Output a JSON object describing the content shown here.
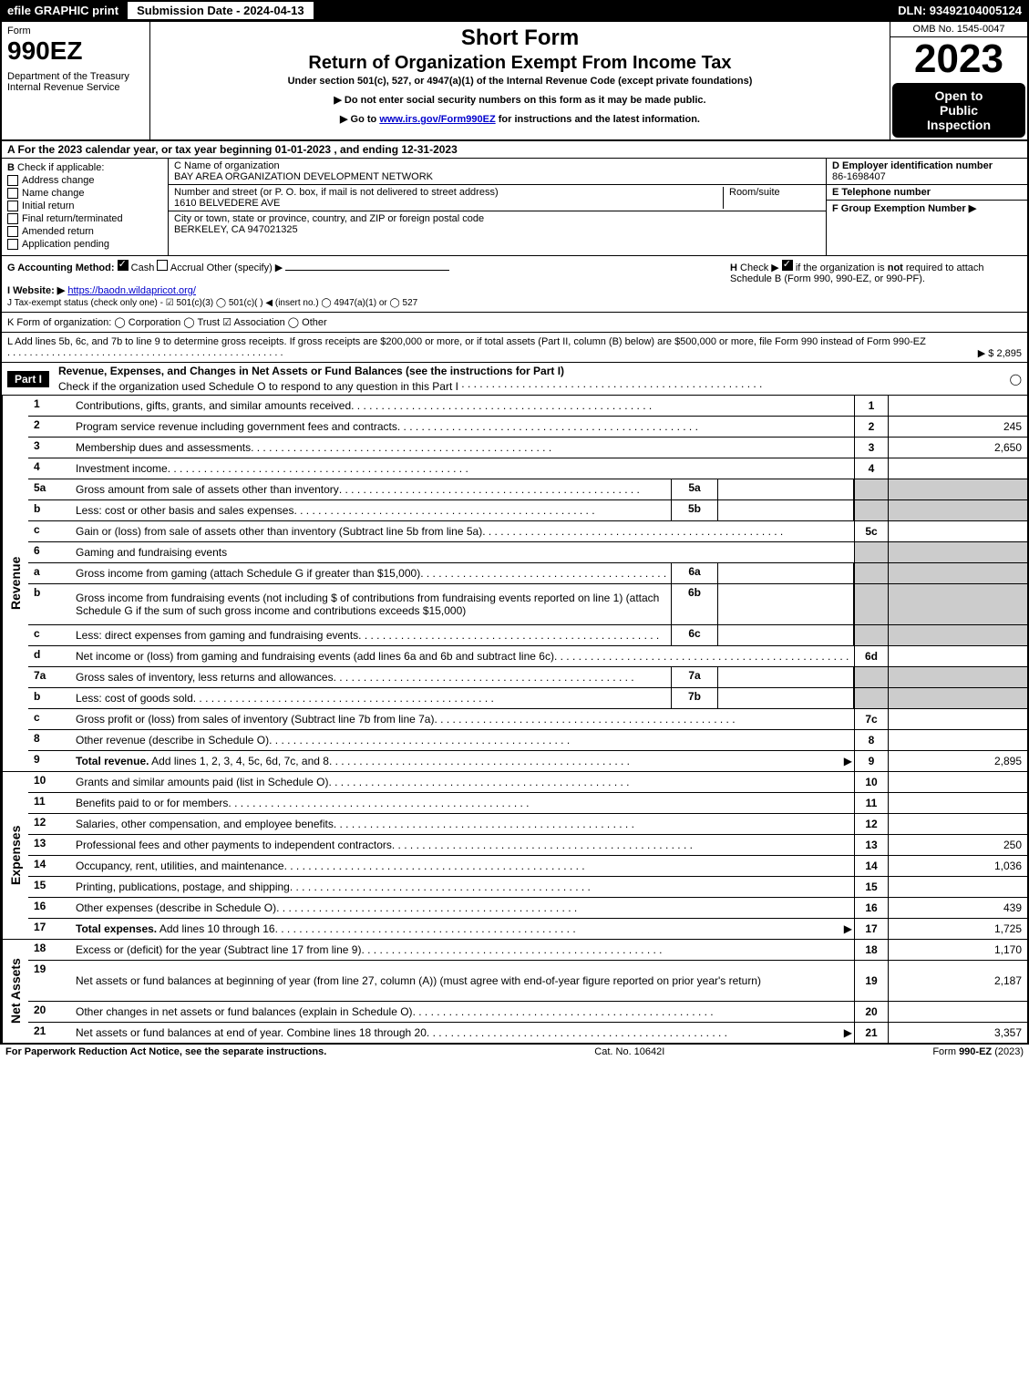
{
  "top_bar": {
    "efile": "efile GRAPHIC print",
    "submission": "Submission Date - 2024-04-13",
    "dln": "DLN: 93492104005124"
  },
  "header": {
    "form_label": "Form",
    "form_number": "990EZ",
    "dept": "Department of the Treasury\nInternal Revenue Service",
    "title1": "Short Form",
    "title2": "Return of Organization Exempt From Income Tax",
    "subtitle": "Under section 501(c), 527, or 4947(a)(1) of the Internal Revenue Code (except private foundations)",
    "instruction1": "▶ Do not enter social security numbers on this form as it may be made public.",
    "instruction2": "▶ Go to www.irs.gov/Form990EZ for instructions and the latest information.",
    "omb": "OMB No. 1545-0047",
    "year": "2023",
    "open_line1": "Open to",
    "open_line2": "Public",
    "open_line3": "Inspection"
  },
  "section_a": "A  For the 2023 calendar year, or tax year beginning 01-01-2023 , and ending 12-31-2023",
  "section_b": {
    "label": "B",
    "title": "Check if applicable:",
    "items": [
      "Address change",
      "Name change",
      "Initial return",
      "Final return/terminated",
      "Amended return",
      "Application pending"
    ]
  },
  "section_c": {
    "name_label": "C Name of organization",
    "name": "BAY AREA ORGANIZATION DEVELOPMENT NETWORK",
    "addr_label": "Number and street (or P. O. box, if mail is not delivered to street address)",
    "room_label": "Room/suite",
    "addr": "1610 BELVEDERE AVE",
    "city_label": "City or town, state or province, country, and ZIP or foreign postal code",
    "city": "BERKELEY, CA  947021325"
  },
  "section_d": {
    "ein_label": "D Employer identification number",
    "ein": "86-1698407",
    "phone_label": "E Telephone number",
    "group_label": "F Group Exemption Number  ▶"
  },
  "meta": {
    "g": "G Accounting Method:",
    "g_cash": "Cash",
    "g_accrual": "Accrual",
    "g_other": "Other (specify) ▶",
    "h": "H  Check ▶ ☑ if the organization is not required to attach Schedule B (Form 990, 990-EZ, or 990-PF).",
    "i_label": "I Website: ▶",
    "i_url": "https://baodn.wildapricot.org/",
    "j": "J Tax-exempt status (check only one) - ☑ 501(c)(3) ◯ 501(c)(  ) ◀ (insert no.) ◯ 4947(a)(1) or ◯ 527",
    "k": "K Form of organization:  ◯ Corporation  ◯ Trust  ☑ Association  ◯ Other",
    "l": "L Add lines 5b, 6c, and 7b to line 9 to determine gross receipts. If gross receipts are $200,000 or more, or if total assets (Part II, column (B) below) are $500,000 or more, file Form 990 instead of Form 990-EZ",
    "l_val": "▶ $ 2,895"
  },
  "part1": {
    "header": "Part I",
    "title": "Revenue, Expenses, and Changes in Net Assets or Fund Balances (see the instructions for Part I)",
    "check": "Check if the organization used Schedule O to respond to any question in this Part I",
    "check_val": "◯"
  },
  "revenue": {
    "label": "Revenue",
    "lines": [
      {
        "n": "1",
        "desc": "Contributions, gifts, grants, and similar amounts received",
        "box": "1",
        "val": ""
      },
      {
        "n": "2",
        "desc": "Program service revenue including government fees and contracts",
        "box": "2",
        "val": "245"
      },
      {
        "n": "3",
        "desc": "Membership dues and assessments",
        "box": "3",
        "val": "2,650"
      },
      {
        "n": "4",
        "desc": "Investment income",
        "box": "4",
        "val": ""
      },
      {
        "n": "5a",
        "desc": "Gross amount from sale of assets other than inventory",
        "sub": "5a",
        "subval": "",
        "shaded": true
      },
      {
        "n": "b",
        "desc": "Less: cost or other basis and sales expenses",
        "sub": "5b",
        "subval": "",
        "shaded": true
      },
      {
        "n": "c",
        "desc": "Gain or (loss) from sale of assets other than inventory (Subtract line 5b from line 5a)",
        "box": "5c",
        "val": ""
      },
      {
        "n": "6",
        "desc": "Gaming and fundraising events",
        "plain": true,
        "shaded": true
      },
      {
        "n": "a",
        "desc": "Gross income from gaming (attach Schedule G if greater than $15,000)",
        "sub": "6a",
        "subval": "",
        "shaded": true
      },
      {
        "n": "b",
        "desc": "Gross income from fundraising events (not including $                            of contributions from fundraising events reported on line 1) (attach Schedule G if the sum of such gross income and contributions exceeds $15,000)",
        "sub": "6b",
        "subval": "",
        "shaded": true,
        "tall": true
      },
      {
        "n": "c",
        "desc": "Less: direct expenses from gaming and fundraising events",
        "sub": "6c",
        "subval": "",
        "shaded": true
      },
      {
        "n": "d",
        "desc": "Net income or (loss) from gaming and fundraising events (add lines 6a and 6b and subtract line 6c)",
        "box": "6d",
        "val": ""
      },
      {
        "n": "7a",
        "desc": "Gross sales of inventory, less returns and allowances",
        "sub": "7a",
        "subval": "",
        "shaded": true
      },
      {
        "n": "b",
        "desc": "Less: cost of goods sold",
        "sub": "7b",
        "subval": "",
        "shaded": true
      },
      {
        "n": "c",
        "desc": "Gross profit or (loss) from sales of inventory (Subtract line 7b from line 7a)",
        "box": "7c",
        "val": ""
      },
      {
        "n": "8",
        "desc": "Other revenue (describe in Schedule O)",
        "box": "8",
        "val": ""
      },
      {
        "n": "9",
        "desc": "Total revenue. Add lines 1, 2, 3, 4, 5c, 6d, 7c, and 8",
        "box": "9",
        "val": "2,895",
        "bold": true,
        "arrow": true
      }
    ]
  },
  "expenses": {
    "label": "Expenses",
    "lines": [
      {
        "n": "10",
        "desc": "Grants and similar amounts paid (list in Schedule O)",
        "box": "10",
        "val": ""
      },
      {
        "n": "11",
        "desc": "Benefits paid to or for members",
        "box": "11",
        "val": ""
      },
      {
        "n": "12",
        "desc": "Salaries, other compensation, and employee benefits",
        "box": "12",
        "val": ""
      },
      {
        "n": "13",
        "desc": "Professional fees and other payments to independent contractors",
        "box": "13",
        "val": "250"
      },
      {
        "n": "14",
        "desc": "Occupancy, rent, utilities, and maintenance",
        "box": "14",
        "val": "1,036"
      },
      {
        "n": "15",
        "desc": "Printing, publications, postage, and shipping",
        "box": "15",
        "val": ""
      },
      {
        "n": "16",
        "desc": "Other expenses (describe in Schedule O)",
        "box": "16",
        "val": "439"
      },
      {
        "n": "17",
        "desc": "Total expenses. Add lines 10 through 16",
        "box": "17",
        "val": "1,725",
        "bold": true,
        "arrow": true
      }
    ]
  },
  "netassets": {
    "label": "Net Assets",
    "lines": [
      {
        "n": "18",
        "desc": "Excess or (deficit) for the year (Subtract line 17 from line 9)",
        "box": "18",
        "val": "1,170"
      },
      {
        "n": "19",
        "desc": "Net assets or fund balances at beginning of year (from line 27, column (A)) (must agree with end-of-year figure reported on prior year's return)",
        "box": "19",
        "val": "2,187",
        "tall": true
      },
      {
        "n": "20",
        "desc": "Other changes in net assets or fund balances (explain in Schedule O)",
        "box": "20",
        "val": ""
      },
      {
        "n": "21",
        "desc": "Net assets or fund balances at end of year. Combine lines 18 through 20",
        "box": "21",
        "val": "3,357",
        "arrow": true
      }
    ]
  },
  "footer": {
    "left": "For Paperwork Reduction Act Notice, see the separate instructions.",
    "center": "Cat. No. 10642I",
    "right": "Form 990-EZ (2023)"
  }
}
